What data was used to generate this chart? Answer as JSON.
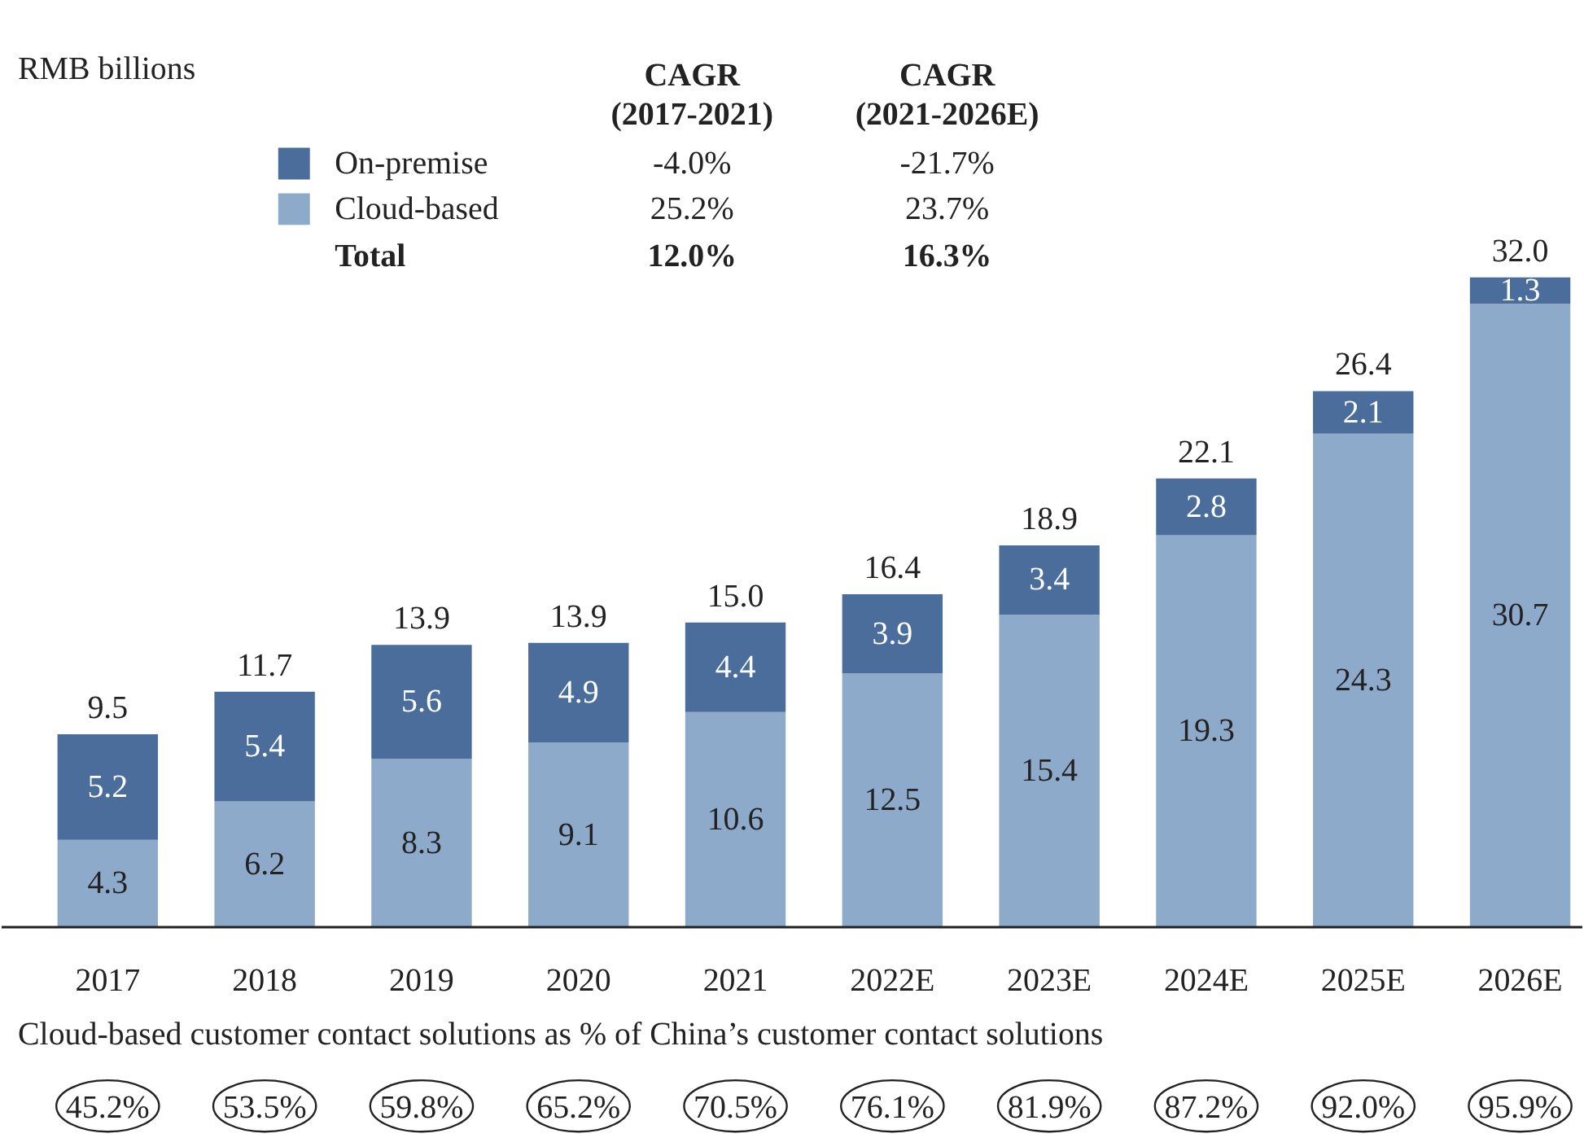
{
  "chart_data": {
    "type": "bar",
    "stacked": true,
    "data_labels": true,
    "legend": "top left",
    "categories": [
      "2017",
      "2018",
      "2019",
      "2020",
      "2021",
      "2022E",
      "2023E",
      "2024E",
      "2025E",
      "2026E"
    ],
    "series": [
      {
        "name": "Cloud-based",
        "color": "#8eaacb",
        "values": [
          4.3,
          6.2,
          8.3,
          9.1,
          10.6,
          12.5,
          15.4,
          19.3,
          24.3,
          30.7
        ]
      },
      {
        "name": "On-premise",
        "color": "#4a6d9c",
        "values": [
          5.2,
          5.4,
          5.6,
          4.9,
          4.4,
          3.9,
          3.4,
          2.8,
          2.1,
          1.3
        ]
      }
    ],
    "totals": [
      "9.5",
      "11.7",
      "13.9",
      "13.9",
      "15.0",
      "16.4",
      "18.9",
      "22.1",
      "26.4",
      "32.0"
    ],
    "annotations": [
      "RMB billions",
      "CAGR\n(2017-2021)",
      "CAGR\n(2021-2026E)",
      "-4.0%",
      "-21.7%",
      "25.2%",
      "23.7%",
      "Total",
      "12.0%",
      "16.3%",
      "Cloud-based customer contact solutions as % of China’s customer contact solutions",
      "45.2%",
      "53.5%",
      "59.8%",
      "65.2%",
      "70.5%",
      "76.1%",
      "81.9%",
      "87.2%",
      "92.0%",
      "95.9%"
    ]
  }
}
